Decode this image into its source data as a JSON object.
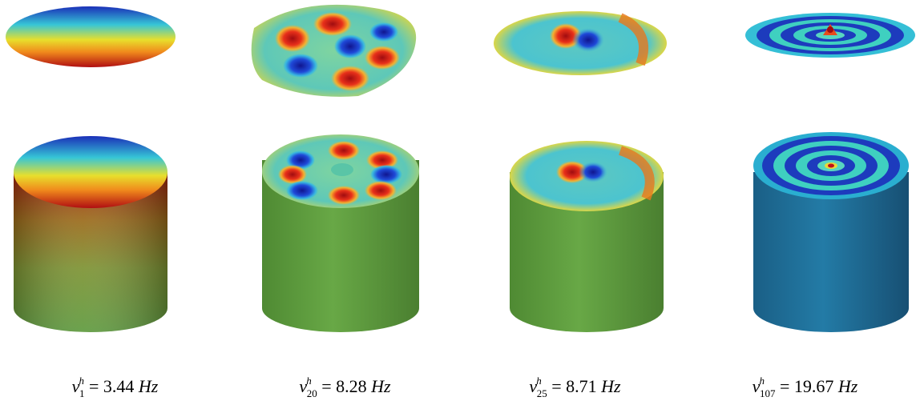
{
  "colors": {
    "blue": "#1a2fb8",
    "cyan": "#36c6d6",
    "yellow": "#e8df2c",
    "orange": "#f08a1c",
    "red": "#b00e12",
    "green_wall": "#5e9a3e",
    "teal_wall": "#1f6e95"
  },
  "modes": [
    {
      "id": "mode-1",
      "symbol": "ν",
      "superscript": "h",
      "subscript": "1",
      "equals": "=",
      "value": "3.44",
      "unit": "Hz",
      "pattern": "linear-tilt"
    },
    {
      "id": "mode-20",
      "symbol": "ν",
      "superscript": "h",
      "subscript": "20",
      "equals": "=",
      "value": "8.28",
      "unit": "Hz",
      "pattern": "six-lobe"
    },
    {
      "id": "mode-25",
      "symbol": "ν",
      "superscript": "h",
      "subscript": "25",
      "equals": "=",
      "value": "8.71",
      "unit": "Hz",
      "pattern": "dipole-with-ring"
    },
    {
      "id": "mode-107",
      "symbol": "ν",
      "superscript": "h",
      "subscript": "107",
      "equals": "=",
      "value": "19.67",
      "unit": "Hz",
      "pattern": "concentric-rings"
    }
  ]
}
